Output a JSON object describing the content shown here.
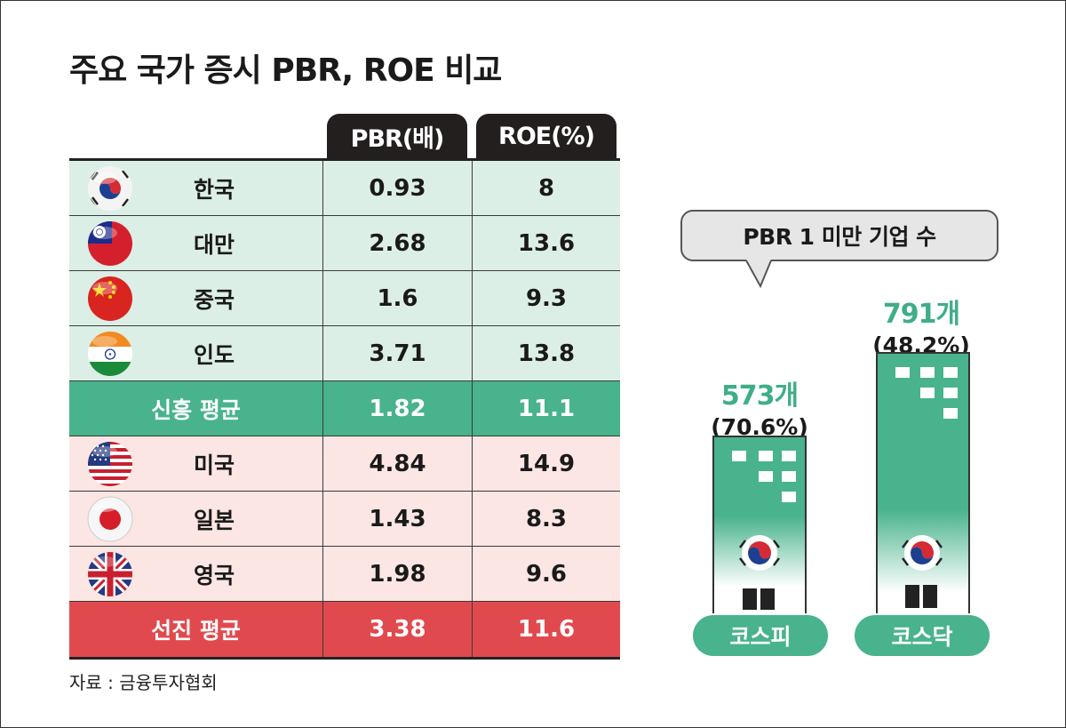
{
  "title": "주요 국가 증시 PBR, ROE 비교",
  "columns": {
    "pbr": "PBR(배)",
    "roe": "ROE(%)"
  },
  "emerging": [
    {
      "country": "한국",
      "flag": "korea-flag-icon",
      "pbr": "0.93",
      "roe": "8"
    },
    {
      "country": "대만",
      "flag": "taiwan-flag-icon",
      "pbr": "2.68",
      "roe": "13.6"
    },
    {
      "country": "중국",
      "flag": "china-flag-icon",
      "pbr": "1.6",
      "roe": "9.3"
    },
    {
      "country": "인도",
      "flag": "india-flag-icon",
      "pbr": "3.71",
      "roe": "13.8"
    }
  ],
  "emerging_avg": {
    "label": "신흥 평균",
    "pbr": "1.82",
    "roe": "11.1"
  },
  "developed": [
    {
      "country": "미국",
      "flag": "usa-flag-icon",
      "pbr": "4.84",
      "roe": "14.9"
    },
    {
      "country": "일본",
      "flag": "japan-flag-icon",
      "pbr": "1.43",
      "roe": "8.3"
    },
    {
      "country": "영국",
      "flag": "uk-flag-icon",
      "pbr": "1.98",
      "roe": "9.6"
    }
  ],
  "developed_avg": {
    "label": "선진 평균",
    "pbr": "3.38",
    "roe": "11.6"
  },
  "source": "자료 : 금융투자협회",
  "bubble": "PBR 1 미만 기업 수",
  "markets": [
    {
      "name": "코스피",
      "count": "573개",
      "pct": "(70.6%)"
    },
    {
      "name": "코스닥",
      "count": "791개",
      "pct": "(48.2%)"
    }
  ],
  "colors": {
    "emerging_bg": "#dcefe6",
    "developed_bg": "#fbe6e4",
    "emerging_avg": "#48b38c",
    "developed_avg": "#e04a4e",
    "accent_green": "#3fae87",
    "header_dark": "#231f1f"
  }
}
